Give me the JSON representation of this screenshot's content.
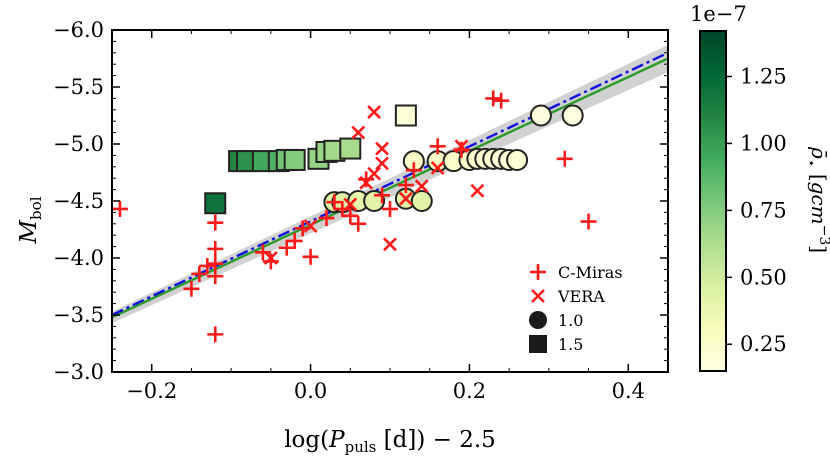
{
  "chart_data": {
    "type": "scatter",
    "xlabel": "log(P_puls [d]) − 2.5",
    "ylabel": "M_bol",
    "xlim": [
      -0.25,
      0.45
    ],
    "ylim": [
      -3.0,
      -6.0
    ],
    "y_inverted": true,
    "x_ticks": [
      -0.2,
      0.0,
      0.2,
      0.4
    ],
    "x_tick_labels": [
      "−0.2",
      "0.0",
      "0.2",
      "0.4"
    ],
    "y_ticks": [
      -6.0,
      -5.5,
      -5.0,
      -4.5,
      -4.0,
      -3.5,
      -3.0
    ],
    "y_tick_labels": [
      "−6.0",
      "−5.5",
      "−5.0",
      "−4.5",
      "−4.0",
      "−3.5",
      "−3.0"
    ],
    "grid": false,
    "legend_position": "bottom-right",
    "legend": [
      {
        "label": "C-Miras",
        "marker": "plus",
        "color": "#ff1a1a"
      },
      {
        "label": "VERA",
        "marker": "x",
        "color": "#ff1a1a"
      },
      {
        "label": "1.0",
        "marker": "circle",
        "color": "#1a1a1a"
      },
      {
        "label": "1.5",
        "marker": "square",
        "color": "#1a1a1a"
      }
    ],
    "colorbar": {
      "label": "ρ̄⋆ [gcm⁻³]",
      "exponent": "1e−7",
      "range": [
        0.15,
        1.42
      ],
      "ticks": [
        0.25,
        0.5,
        0.75,
        1.0,
        1.25
      ],
      "tick_labels": [
        "0.25",
        "0.50",
        "0.75",
        "1.00",
        "1.25"
      ],
      "colormap": [
        "#ffffe5",
        "#f7fcb9",
        "#d9f0a3",
        "#addd8e",
        "#78c679",
        "#41ab5d",
        "#238443",
        "#006837",
        "#004529"
      ]
    },
    "fit_lines": [
      {
        "style": "solid",
        "color": "#2a9a2a",
        "x": [
          -0.25,
          0.45
        ],
        "y": [
          -3.48,
          -5.75
        ],
        "band": [
          0.05,
          0.12
        ]
      },
      {
        "style": "dashdot",
        "color": "#1010dd",
        "x": [
          -0.25,
          0.45
        ],
        "y": [
          -3.5,
          -5.8
        ]
      }
    ],
    "series": [
      {
        "name": "C-Miras",
        "marker": "plus",
        "color": "#ff1a1a",
        "x": [
          -0.24,
          -0.15,
          -0.14,
          -0.13,
          -0.12,
          -0.12,
          -0.12,
          -0.12,
          -0.12,
          -0.06,
          -0.05,
          -0.03,
          -0.02,
          -0.01,
          0.0,
          0.02,
          0.03,
          0.04,
          0.05,
          0.06,
          0.07,
          0.09,
          0.1,
          0.12,
          0.13,
          0.16,
          0.19,
          0.23,
          0.24,
          0.32,
          0.35
        ],
        "y": [
          -4.43,
          -3.73,
          -3.86,
          -3.93,
          -3.33,
          -3.84,
          -3.95,
          -4.08,
          -4.31,
          -4.05,
          -3.97,
          -4.09,
          -4.15,
          -4.26,
          -4.01,
          -4.35,
          -4.49,
          -4.43,
          -4.37,
          -4.3,
          -4.69,
          -4.55,
          -4.43,
          -4.64,
          -4.77,
          -4.98,
          -4.95,
          -5.4,
          -5.38,
          -4.87,
          -4.32
        ]
      },
      {
        "name": "VERA",
        "marker": "x",
        "color": "#ff1a1a",
        "x": [
          -0.05,
          0.0,
          0.05,
          0.06,
          0.07,
          0.08,
          0.08,
          0.09,
          0.09,
          0.1,
          0.12,
          0.14,
          0.16,
          0.19,
          0.21
        ],
        "y": [
          -4.0,
          -4.28,
          -4.47,
          -5.1,
          -4.66,
          -4.74,
          -5.28,
          -4.96,
          -4.83,
          -4.12,
          -4.52,
          -4.63,
          -4.79,
          -4.98,
          -4.59
        ]
      },
      {
        "name": "1.0",
        "marker": "circle",
        "x": [
          0.03,
          0.04,
          0.06,
          0.08,
          0.12,
          0.14,
          0.13,
          0.16,
          0.18,
          0.2,
          0.21,
          0.22,
          0.23,
          0.24,
          0.25,
          0.26,
          0.29,
          0.33
        ],
        "y": [
          -4.49,
          -4.49,
          -4.5,
          -4.5,
          -4.52,
          -4.5,
          -4.85,
          -4.85,
          -4.85,
          -4.86,
          -4.87,
          -4.87,
          -4.87,
          -4.87,
          -4.86,
          -4.86,
          -5.25,
          -5.25
        ],
        "rho": [
          0.45,
          0.44,
          0.4,
          0.42,
          0.43,
          0.42,
          0.26,
          0.26,
          0.25,
          0.24,
          0.23,
          0.22,
          0.22,
          0.2,
          0.2,
          0.21,
          0.18,
          0.17
        ]
      },
      {
        "name": "1.5",
        "marker": "square",
        "x": [
          -0.12,
          -0.09,
          -0.08,
          -0.06,
          -0.04,
          -0.03,
          -0.02,
          0.01,
          0.02,
          0.03,
          0.05,
          0.12
        ],
        "y": [
          -4.48,
          -4.85,
          -4.85,
          -4.85,
          -4.85,
          -4.86,
          -4.86,
          -4.87,
          -4.93,
          -4.94,
          -4.96,
          -5.25
        ],
        "rho": [
          1.2,
          1.1,
          1.05,
          0.95,
          0.9,
          0.8,
          0.75,
          0.7,
          0.68,
          0.66,
          0.64,
          0.2
        ]
      }
    ]
  }
}
